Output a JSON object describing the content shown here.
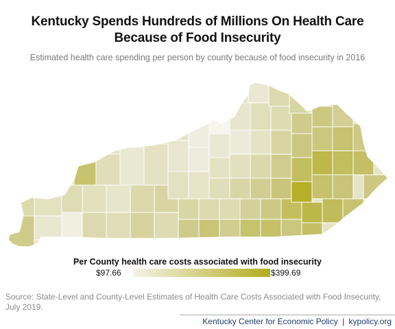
{
  "header": {
    "title_line1": "Kentucky Spends Hundreds of Millions On Health Care",
    "title_line2": "Because of Food Insecurity",
    "subtitle": "Estimated health care spending per person by county because of food insecurity in 2016"
  },
  "legend": {
    "title": "Per County  health care costs  associated with food  insecurity",
    "min_label": "$97.66",
    "max_label": "$399.69",
    "min_color": "#f4f3e6",
    "max_color": "#b3ad1f"
  },
  "source": "Source: State-Level  and County-Level  Estimates of Health Care  Costs Associated with Food Insecurity, July 2019.",
  "footer": {
    "org": "Kentucky Center for Economic Policy",
    "separator": "|",
    "site": "kypolicy.org"
  },
  "colors": {
    "border": "#ffffff",
    "text_dark": "#111111",
    "text_muted": "#8a8a8a",
    "footer_link": "#1f3a6b"
  }
}
